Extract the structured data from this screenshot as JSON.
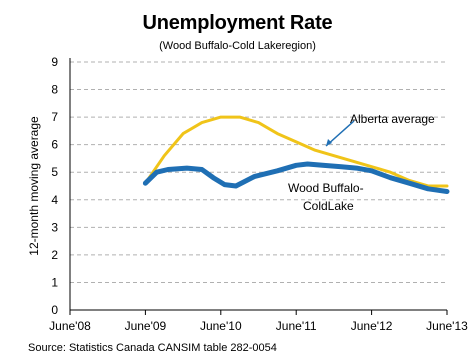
{
  "chart_data": {
    "type": "line",
    "title": "Unemployment Rate",
    "subtitle": "(Wood Buffalo-Cold Lakeregion)",
    "ylabel": "12-month moving average",
    "xlabel": "",
    "ylim": [
      0,
      9
    ],
    "y_ticks": [
      "0",
      "1",
      "2",
      "3",
      "4",
      "5",
      "6",
      "7",
      "8",
      "9"
    ],
    "x_ticks": [
      "June'08",
      "June'09",
      "June'10",
      "June'11",
      "June'12",
      "June'13"
    ],
    "grid": "horizontal dashed",
    "source": "Source: Statistics Canada CANSIM table 282-0054",
    "annotations": [
      {
        "text": "Alberta average",
        "series": 0
      },
      {
        "text": "Wood Buffalo-",
        "series": 1
      },
      {
        "text": "ColdLake",
        "series": 1
      }
    ],
    "series": [
      {
        "name": "Alberta average",
        "color": "#f0c419",
        "x": [
          2009.0,
          2009.25,
          2009.5,
          2009.75,
          2010.0,
          2010.25,
          2010.5,
          2010.75,
          2011.0,
          2011.25,
          2011.5,
          2011.75,
          2012.0,
          2012.25,
          2012.5,
          2012.75,
          2013.0
        ],
        "y": [
          4.6,
          5.6,
          6.4,
          6.8,
          7.0,
          7.0,
          6.8,
          6.4,
          6.1,
          5.8,
          5.6,
          5.4,
          5.2,
          5.0,
          4.7,
          4.5,
          4.5
        ]
      },
      {
        "name": "Wood Buffalo-Cold Lake",
        "color": "#1f6fb4",
        "x": [
          2009.0,
          2009.15,
          2009.3,
          2009.55,
          2009.75,
          2009.9,
          2010.05,
          2010.2,
          2010.45,
          2010.75,
          2011.0,
          2011.15,
          2011.35,
          2011.6,
          2011.8,
          2012.0,
          2012.25,
          2012.5,
          2012.75,
          2013.0
        ],
        "y": [
          4.6,
          5.0,
          5.1,
          5.15,
          5.1,
          4.8,
          4.55,
          4.5,
          4.85,
          5.05,
          5.25,
          5.3,
          5.25,
          5.2,
          5.15,
          5.05,
          4.8,
          4.6,
          4.4,
          4.3
        ]
      }
    ]
  }
}
